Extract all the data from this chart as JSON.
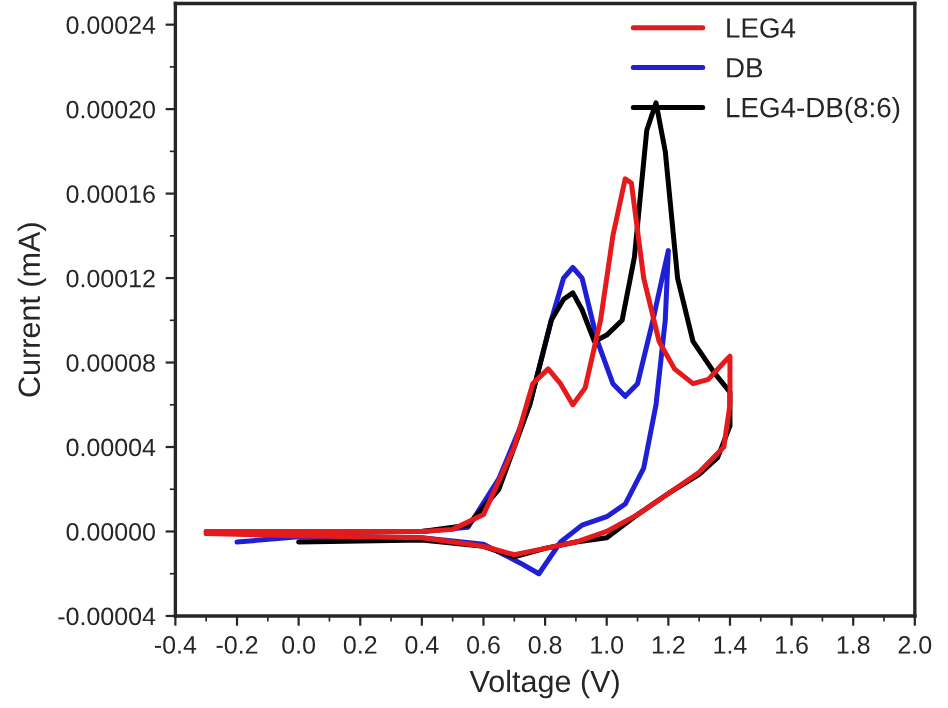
{
  "chart_data": {
    "type": "line",
    "xlabel": "Voltage (V)",
    "ylabel": "Current (mA)",
    "xlim": [
      -0.4,
      2.0
    ],
    "ylim": [
      -4e-05,
      0.00025
    ],
    "xticks": [
      -0.4,
      -0.2,
      {
        "value": 0,
        "label": "0.0"
      },
      0.2,
      0.4,
      0.6,
      0.8,
      {
        "value": 1,
        "label": "1.0"
      },
      1.2,
      1.4,
      1.6,
      1.8,
      {
        "value": 2,
        "label": "2.0"
      }
    ],
    "yticks": [
      {
        "value": -4e-05,
        "label": "-0.00004"
      },
      {
        "value": 0,
        "label": "0.00000"
      },
      {
        "value": 4e-05,
        "label": "0.00004"
      },
      {
        "value": 8e-05,
        "label": "0.00008"
      },
      {
        "value": 0.00012,
        "label": "0.00012"
      },
      {
        "value": 0.00016,
        "label": "0.00016"
      },
      {
        "value": 0.0002,
        "label": "0.00020"
      },
      {
        "value": 0.00024,
        "label": "0.00024"
      }
    ],
    "grid": false,
    "legend": "top right",
    "marker": "none",
    "line_style": "solid",
    "series": [
      {
        "name": "LEG4",
        "color": "#e41a1c",
        "x": [
          -0.3,
          0.0,
          0.4,
          0.5,
          0.6,
          0.7,
          0.76,
          0.81,
          0.85,
          0.89,
          0.93,
          0.98,
          1.02,
          1.06,
          1.08,
          1.12,
          1.17,
          1.22,
          1.28,
          1.33,
          1.38,
          1.4,
          1.4,
          1.38,
          1.3,
          1.2,
          1.1,
          1.0,
          0.9,
          0.8,
          0.7,
          0.6,
          0.4,
          0.0,
          -0.3
        ],
        "values": [
          0.0,
          0.0,
          0.0,
          1e-06,
          8e-06,
          4e-05,
          7e-05,
          7.7e-05,
          7e-05,
          6e-05,
          6.8e-05,
          0.0001,
          0.00014,
          0.000167,
          0.000165,
          0.00012,
          9e-05,
          7.7e-05,
          7e-05,
          7.2e-05,
          8e-05,
          8.3e-05,
          6e-05,
          4e-05,
          2.8e-05,
          1.8e-05,
          8e-06,
          0.0,
          -5e-06,
          -8e-06,
          -1.1e-05,
          -7e-06,
          -3e-06,
          -2e-06,
          -1e-06
        ]
      },
      {
        "name": "DB",
        "color": "#1f1fd6",
        "x": [
          -0.3,
          0.4,
          0.55,
          0.65,
          0.75,
          0.82,
          0.86,
          0.89,
          0.92,
          0.97,
          1.02,
          1.06,
          1.1,
          1.15,
          1.18,
          1.2,
          1.19,
          1.16,
          1.12,
          1.06,
          1.0,
          0.92,
          0.85,
          0.78,
          0.72,
          0.6,
          0.4,
          0.0,
          -0.2
        ],
        "values": [
          0.0,
          0.0,
          2e-06,
          2.5e-05,
          6e-05,
          0.0001,
          0.00012,
          0.000125,
          0.00012,
          9e-05,
          7e-05,
          6.4e-05,
          7e-05,
          0.0001,
          0.00012,
          0.000133,
          0.0001,
          6e-05,
          3e-05,
          1.3e-05,
          7e-06,
          3e-06,
          -5e-06,
          -2e-05,
          -1.5e-05,
          -6e-06,
          -3e-06,
          -2.5e-06,
          -5e-06
        ]
      },
      {
        "name": "LEG4-DB(8:6)",
        "color": "#000000",
        "x": [
          -0.3,
          0.4,
          0.55,
          0.65,
          0.75,
          0.82,
          0.86,
          0.89,
          0.92,
          0.96,
          1.0,
          1.05,
          1.09,
          1.13,
          1.16,
          1.19,
          1.23,
          1.28,
          1.35,
          1.4,
          1.4,
          1.36,
          1.3,
          1.2,
          1.1,
          1.0,
          0.9,
          0.8,
          0.7,
          0.6,
          0.4,
          0.0
        ],
        "values": [
          -1e-06,
          0.0,
          3e-06,
          2e-05,
          6e-05,
          0.0001,
          0.00011,
          0.000113,
          0.000105,
          9e-05,
          9.3e-05,
          0.0001,
          0.00013,
          0.00019,
          0.000203,
          0.00018,
          0.00012,
          9e-05,
          7.5e-05,
          6.6e-05,
          5e-05,
          3.5e-05,
          2.7e-05,
          1.8e-05,
          8e-06,
          -3e-06,
          -5e-06,
          -8e-06,
          -1.2e-05,
          -7e-06,
          -4e-06,
          -5e-06
        ]
      }
    ]
  }
}
